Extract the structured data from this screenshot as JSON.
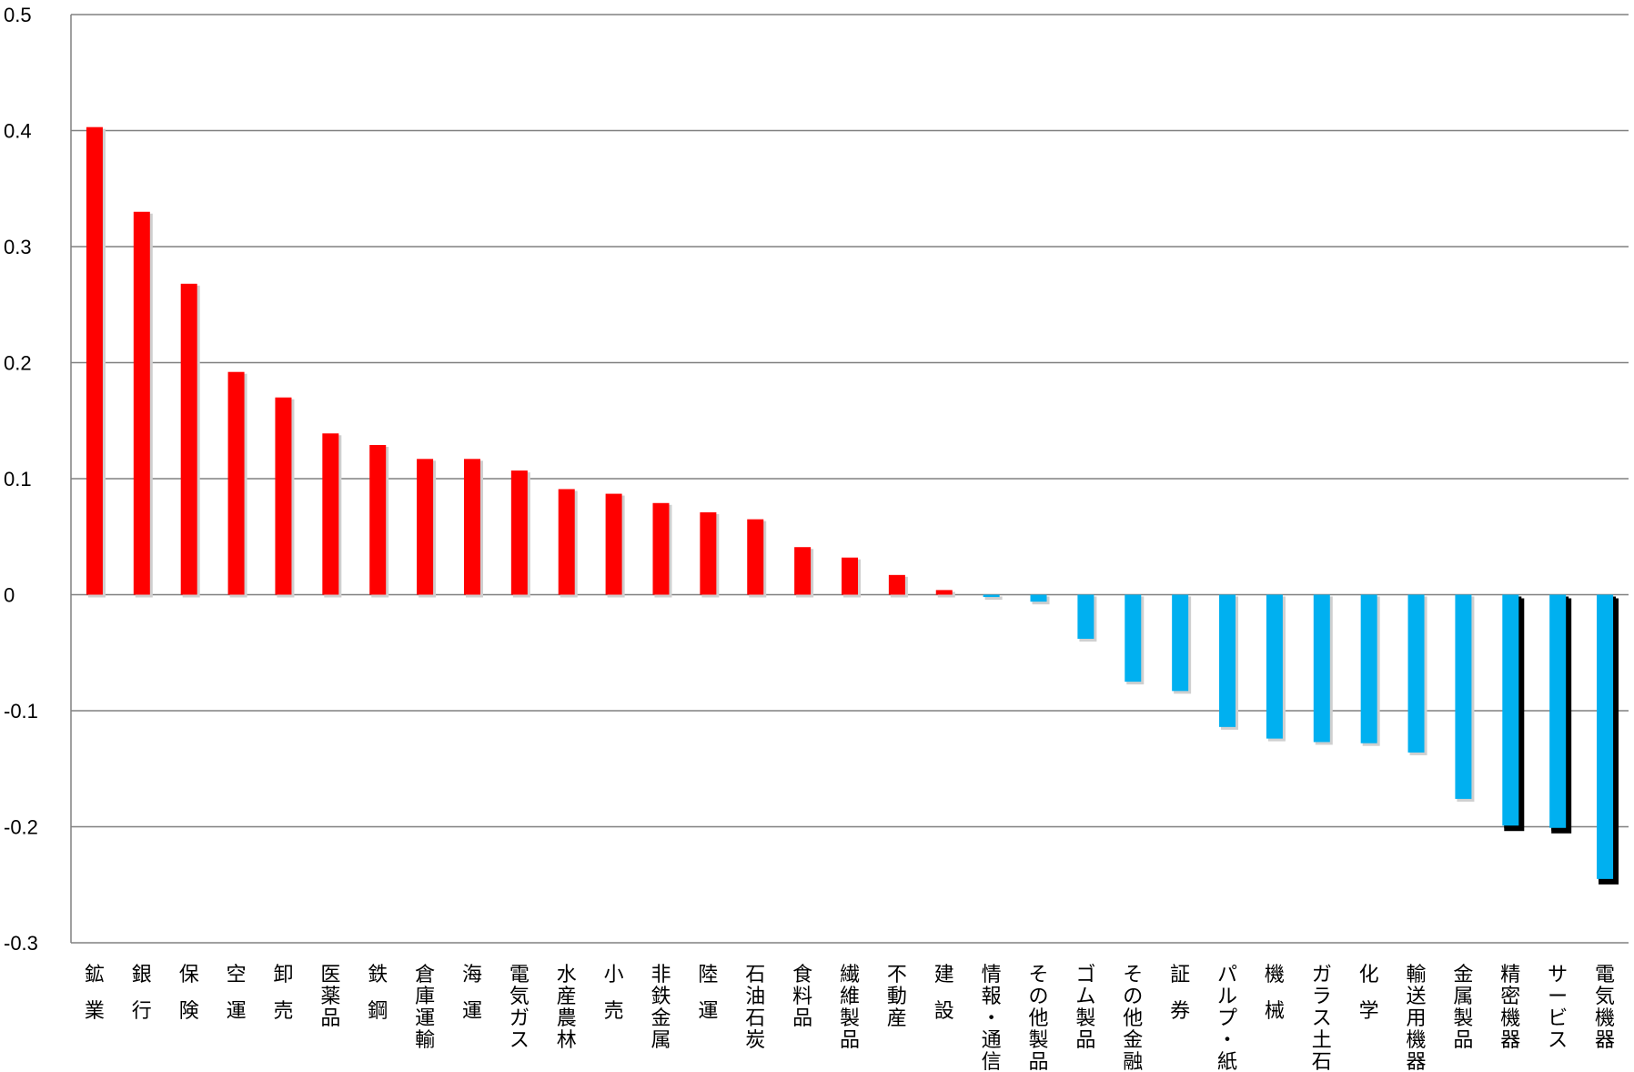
{
  "chart_data": {
    "type": "bar",
    "title": "",
    "xlabel": "",
    "ylabel": "",
    "ylim": [
      -0.3,
      0.5
    ],
    "yticks": [
      0.5,
      0.4,
      0.3,
      0.2,
      0.1,
      0,
      -0.1,
      -0.2,
      -0.3
    ],
    "ytick_labels": [
      "0.5",
      "0.4",
      "0.3",
      "0.2",
      "0.1",
      "0",
      "-0.1",
      "-0.2",
      "-0.3"
    ],
    "grid": true,
    "legend": "none",
    "positive_color": "#ff0000",
    "negative_color": "#00b0f0",
    "highlight_shadow_color": "#000000",
    "categories": [
      "鉱業",
      "銀行",
      "保険",
      "空運",
      "卸売",
      "医薬品",
      "鉄鋼",
      "倉庫運輸",
      "海運",
      "電気ガス",
      "水産農林",
      "小売",
      "非鉄金属",
      "陸運",
      "石油石炭",
      "食料品",
      "繊維製品",
      "不動産",
      "建設",
      "情報・通信",
      "その他製品",
      "ゴム製品",
      "その他金融",
      "証券",
      "パルプ・紙",
      "機械",
      "ガラス土石",
      "化学",
      "輸送用機器",
      "金属製品",
      "精密機器",
      "サービス",
      "電気機器"
    ],
    "label_lines": [
      [
        "鉱",
        "業"
      ],
      [
        "銀",
        "行"
      ],
      [
        "保",
        "険"
      ],
      [
        "空",
        "運"
      ],
      [
        "卸",
        "売"
      ],
      [
        "医",
        "薬",
        "品"
      ],
      [
        "鉄",
        "鋼"
      ],
      [
        "倉",
        "庫",
        "運",
        "輸"
      ],
      [
        "海",
        "運"
      ],
      [
        "電",
        "気",
        "ガ",
        "ス"
      ],
      [
        "水",
        "産",
        "農",
        "林"
      ],
      [
        "小",
        "売"
      ],
      [
        "非",
        "鉄",
        "金",
        "属"
      ],
      [
        "陸",
        "運"
      ],
      [
        "石",
        "油",
        "石",
        "炭"
      ],
      [
        "食",
        "料",
        "品"
      ],
      [
        "繊",
        "維",
        "製",
        "品"
      ],
      [
        "不",
        "動",
        "産"
      ],
      [
        "建",
        "設"
      ],
      [
        "情",
        "報",
        "・",
        "通",
        "信"
      ],
      [
        "そ",
        "の",
        "他",
        "製",
        "品"
      ],
      [
        "ゴ",
        "ム",
        "製",
        "品"
      ],
      [
        "そ",
        "の",
        "他",
        "金",
        "融"
      ],
      [
        "証",
        "券"
      ],
      [
        "パ",
        "ル",
        "プ",
        "・",
        "紙"
      ],
      [
        "機",
        "械"
      ],
      [
        "ガ",
        "ラ",
        "ス",
        "土",
        "石"
      ],
      [
        "化",
        "学"
      ],
      [
        "輸",
        "送",
        "用",
        "機",
        "器"
      ],
      [
        "金",
        "属",
        "製",
        "品"
      ],
      [
        "精",
        "密",
        "機",
        "器"
      ],
      [
        "サ",
        "ー",
        "ビ",
        "ス"
      ],
      [
        "電",
        "気",
        "機",
        "器"
      ]
    ],
    "values": [
      0.403,
      0.33,
      0.268,
      0.192,
      0.17,
      0.139,
      0.129,
      0.117,
      0.117,
      0.107,
      0.091,
      0.087,
      0.079,
      0.071,
      0.065,
      0.041,
      0.032,
      0.017,
      0.004,
      -0.002,
      -0.006,
      -0.038,
      -0.075,
      -0.083,
      -0.114,
      -0.124,
      -0.127,
      -0.128,
      -0.136,
      -0.176,
      -0.199,
      -0.201,
      -0.245
    ],
    "highlighted": [
      "精密機器",
      "サービス",
      "電気機器"
    ]
  }
}
